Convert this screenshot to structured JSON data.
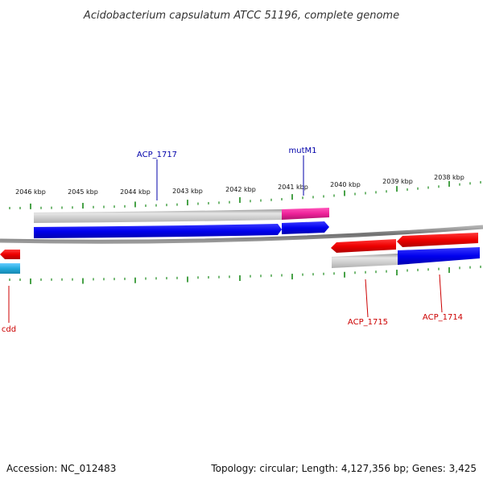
{
  "title": "Acidobacterium capsulatum ATCC 51196, complete genome",
  "footer": {
    "accession": "Accession: NC_012483",
    "summary": "Topology: circular; Length: 4,127,356 bp; Genes: 3,425"
  },
  "colors": {
    "backbone": "#808080",
    "tick": "#1a8a1a",
    "forward_cds": "#0000ee",
    "reverse_cds": "#ee0000",
    "forward_gene": "#bbbbbb",
    "reverse_gene": "#bbbbbb",
    "highlight_gene": "#ee2299",
    "rna": "#22aadd",
    "forward_label": "#0000aa",
    "reverse_label": "#cc0000"
  },
  "scale_labels": [
    "2046 kbp",
    "2045 kbp",
    "2044 kbp",
    "2043 kbp",
    "2042 kbp",
    "2041 kbp",
    "2040 kbp",
    "2039 kbp",
    "2038 kbp"
  ],
  "gene_labels": {
    "acp1717": "ACP_1717",
    "mutm1": "mutM1",
    "cdd": "cdd",
    "acp1715": "ACP_1715",
    "acp1714": "ACP_1714"
  }
}
